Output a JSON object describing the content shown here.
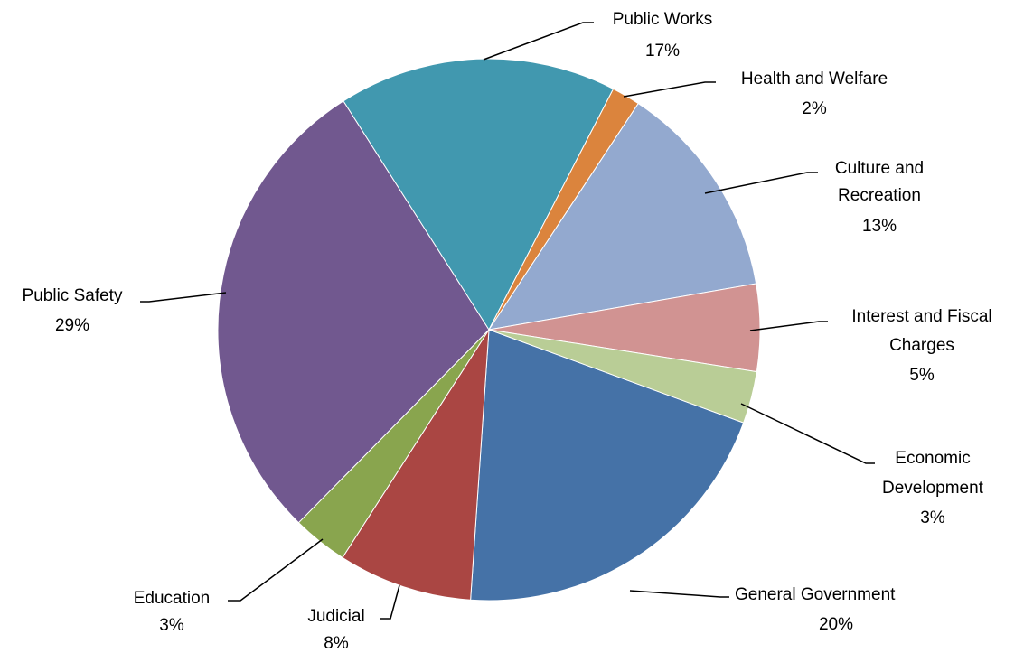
{
  "chart_data": {
    "type": "pie",
    "title": "",
    "slices": [
      {
        "name": "General Government",
        "label_lines": [
          "General Government"
        ],
        "pct_label": "20%",
        "value": 20.5,
        "color": "#4572A7"
      },
      {
        "name": "Judicial",
        "label_lines": [
          "Judicial"
        ],
        "pct_label": "8%",
        "value": 8.0,
        "color": "#AA4643"
      },
      {
        "name": "Education",
        "label_lines": [
          "Education"
        ],
        "pct_label": "3%",
        "value": 3.3,
        "color": "#89A54E"
      },
      {
        "name": "Public Safety",
        "label_lines": [
          "Public Safety"
        ],
        "pct_label": "29%",
        "value": 28.6,
        "color": "#71588F"
      },
      {
        "name": "Public Works",
        "label_lines": [
          "Public Works"
        ],
        "pct_label": "17%",
        "value": 16.6,
        "color": "#4198AF"
      },
      {
        "name": "Health and Welfare",
        "label_lines": [
          "Health and Welfare"
        ],
        "pct_label": "2%",
        "value": 1.7,
        "color": "#DB843D"
      },
      {
        "name": "Culture and Recreation",
        "label_lines": [
          "Culture and",
          "Recreation"
        ],
        "pct_label": "13%",
        "value": 13.0,
        "color": "#93A9CF"
      },
      {
        "name": "Interest and Fiscal Charges",
        "label_lines": [
          "Interest and Fiscal",
          "Charges"
        ],
        "pct_label": "5%",
        "value": 5.2,
        "color": "#D19392"
      },
      {
        "name": "Economic Development",
        "label_lines": [
          "Economic",
          "Development"
        ],
        "pct_label": "3%",
        "value": 3.1,
        "color": "#B9CD96"
      }
    ],
    "start_direction": "clockwise from bottom-right",
    "legend": "none (data labels with leader lines)"
  }
}
